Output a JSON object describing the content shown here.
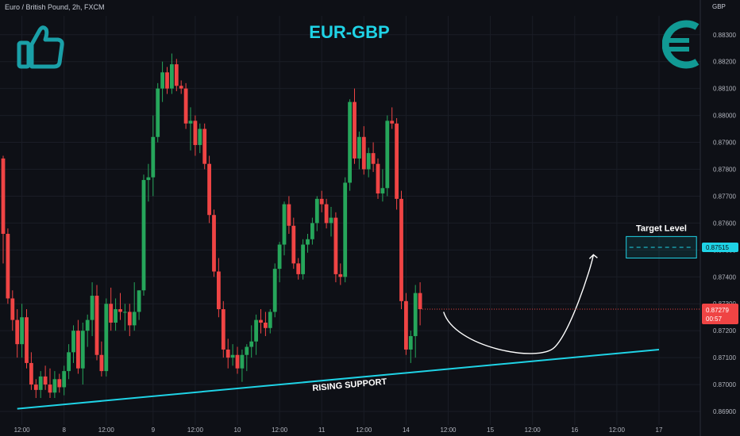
{
  "header": {
    "symbol_title": "Euro / British Pound, 2h, FXCM",
    "pair_title": "EUR-GBP",
    "currency": "GBP"
  },
  "icons": {
    "left": "thumbs-up-icon",
    "right": "euro-icon"
  },
  "colors": {
    "background": "#0e1016",
    "up": "#26a65b",
    "down": "#ef4444",
    "accent": "#1fd3e6",
    "grid": "#1a1d26",
    "axis_text": "#b2b5be",
    "annotation": "#ffffff"
  },
  "chart_data": {
    "type": "candlestick",
    "title": "EUR-GBP",
    "ylim": [
      0.8685,
      0.8837
    ],
    "yticks": [
      0.883,
      0.882,
      0.881,
      0.88,
      0.879,
      0.878,
      0.877,
      0.876,
      0.875,
      0.874,
      0.873,
      0.872,
      0.871,
      0.87,
      0.869
    ],
    "ytick_labels": [
      "0.88300",
      "0.88200",
      "0.88100",
      "0.88000",
      "0.87900",
      "0.87800",
      "0.87700",
      "0.87600",
      "0.87500",
      "0.87400",
      "0.87300",
      "0.87200",
      "0.87100",
      "0.87000",
      "0.86900"
    ],
    "xticks": [
      {
        "label": "12:00",
        "index": 4
      },
      {
        "label": "8",
        "index": 13
      },
      {
        "label": "12:00",
        "index": 22
      },
      {
        "label": "9",
        "index": 32
      },
      {
        "label": "12:00",
        "index": 41
      },
      {
        "label": "10",
        "index": 50
      },
      {
        "label": "12:00",
        "index": 59
      },
      {
        "label": "11",
        "index": 68
      },
      {
        "label": "12:00",
        "index": 77
      },
      {
        "label": "14",
        "index": 86
      },
      {
        "label": "12:00",
        "index": 95
      },
      {
        "label": "15",
        "index": 104
      },
      {
        "label": "12:00",
        "index": 113
      },
      {
        "label": "16",
        "index": 122
      },
      {
        "label": "12:00",
        "index": 131
      },
      {
        "label": "17",
        "index": 140
      }
    ],
    "candles": [
      [
        0.8784,
        0.8785,
        0.8745,
        0.8756
      ],
      [
        0.8756,
        0.8758,
        0.873,
        0.8732
      ],
      [
        0.8732,
        0.8735,
        0.872,
        0.8724
      ],
      [
        0.8724,
        0.8728,
        0.871,
        0.8715
      ],
      [
        0.8715,
        0.873,
        0.871,
        0.8725
      ],
      [
        0.8725,
        0.8728,
        0.8706,
        0.8708
      ],
      [
        0.8708,
        0.8712,
        0.8698,
        0.87
      ],
      [
        0.87,
        0.8702,
        0.8695,
        0.8698
      ],
      [
        0.8698,
        0.8705,
        0.8695,
        0.8703
      ],
      [
        0.8703,
        0.8707,
        0.8698,
        0.87
      ],
      [
        0.87,
        0.8706,
        0.8695,
        0.8697
      ],
      [
        0.8697,
        0.8705,
        0.8695,
        0.8702
      ],
      [
        0.8702,
        0.8704,
        0.8697,
        0.8699
      ],
      [
        0.8699,
        0.8707,
        0.8696,
        0.8705
      ],
      [
        0.8705,
        0.8715,
        0.8702,
        0.8712
      ],
      [
        0.8712,
        0.8722,
        0.8708,
        0.872
      ],
      [
        0.872,
        0.8724,
        0.8704,
        0.8706
      ],
      [
        0.8706,
        0.8723,
        0.87,
        0.872
      ],
      [
        0.872,
        0.8726,
        0.8714,
        0.8724
      ],
      [
        0.8724,
        0.8738,
        0.8718,
        0.8733
      ],
      [
        0.8733,
        0.8737,
        0.8709,
        0.8711
      ],
      [
        0.8711,
        0.8716,
        0.8703,
        0.8705
      ],
      [
        0.8705,
        0.8732,
        0.8703,
        0.873
      ],
      [
        0.873,
        0.8736,
        0.872,
        0.8723
      ],
      [
        0.8723,
        0.8732,
        0.872,
        0.8728
      ],
      [
        0.8728,
        0.8734,
        0.8724,
        0.8727
      ],
      [
        0.8727,
        0.873,
        0.872,
        0.8727
      ],
      [
        0.8727,
        0.873,
        0.8718,
        0.8722
      ],
      [
        0.8722,
        0.8738,
        0.872,
        0.8727
      ],
      [
        0.8727,
        0.8735,
        0.8724,
        0.8735
      ],
      [
        0.8735,
        0.8778,
        0.8733,
        0.8776
      ],
      [
        0.8776,
        0.8782,
        0.8768,
        0.8777
      ],
      [
        0.8777,
        0.88,
        0.877,
        0.8792
      ],
      [
        0.8792,
        0.8812,
        0.879,
        0.881
      ],
      [
        0.881,
        0.882,
        0.8805,
        0.8816
      ],
      [
        0.8816,
        0.8818,
        0.8808,
        0.881
      ],
      [
        0.881,
        0.8823,
        0.8808,
        0.8819
      ],
      [
        0.8819,
        0.8821,
        0.8809,
        0.8811
      ],
      [
        0.8811,
        0.8813,
        0.8808,
        0.881
      ],
      [
        0.881,
        0.8812,
        0.8795,
        0.8797
      ],
      [
        0.8797,
        0.8803,
        0.8787,
        0.8798
      ],
      [
        0.8798,
        0.88,
        0.8785,
        0.8789
      ],
      [
        0.8789,
        0.8797,
        0.8786,
        0.8795
      ],
      [
        0.8795,
        0.8797,
        0.878,
        0.8782
      ],
      [
        0.8782,
        0.8785,
        0.876,
        0.8763
      ],
      [
        0.8763,
        0.8765,
        0.874,
        0.8742
      ],
      [
        0.8742,
        0.8747,
        0.8725,
        0.8728
      ],
      [
        0.8728,
        0.8731,
        0.871,
        0.8713
      ],
      [
        0.8713,
        0.8717,
        0.8706,
        0.871
      ],
      [
        0.871,
        0.8715,
        0.8707,
        0.8711
      ],
      [
        0.8711,
        0.8714,
        0.8704,
        0.8706
      ],
      [
        0.8706,
        0.8713,
        0.8701,
        0.8711
      ],
      [
        0.8711,
        0.8715,
        0.8705,
        0.8714
      ],
      [
        0.8714,
        0.8722,
        0.871,
        0.8716
      ],
      [
        0.8716,
        0.8726,
        0.8711,
        0.8724
      ],
      [
        0.8724,
        0.8728,
        0.8719,
        0.8723
      ],
      [
        0.8723,
        0.8727,
        0.8718,
        0.8721
      ],
      [
        0.8721,
        0.8728,
        0.8719,
        0.8727
      ],
      [
        0.8727,
        0.8745,
        0.8725,
        0.8743
      ],
      [
        0.8743,
        0.8753,
        0.8738,
        0.8752
      ],
      [
        0.8752,
        0.8768,
        0.8748,
        0.8767
      ],
      [
        0.8767,
        0.877,
        0.8756,
        0.8759
      ],
      [
        0.8759,
        0.8762,
        0.8743,
        0.8745
      ],
      [
        0.8745,
        0.8747,
        0.8739,
        0.8741
      ],
      [
        0.8741,
        0.8754,
        0.8739,
        0.8752
      ],
      [
        0.8752,
        0.8756,
        0.8749,
        0.8754
      ],
      [
        0.8754,
        0.8762,
        0.8752,
        0.876
      ],
      [
        0.876,
        0.877,
        0.8757,
        0.8769
      ],
      [
        0.8769,
        0.8772,
        0.8764,
        0.8767
      ],
      [
        0.8767,
        0.8769,
        0.8758,
        0.876
      ],
      [
        0.876,
        0.8766,
        0.8755,
        0.8762
      ],
      [
        0.8762,
        0.8764,
        0.8738,
        0.8741
      ],
      [
        0.8741,
        0.8745,
        0.8737,
        0.874
      ],
      [
        0.874,
        0.8777,
        0.8738,
        0.8775
      ],
      [
        0.8775,
        0.8806,
        0.8772,
        0.8805
      ],
      [
        0.8805,
        0.881,
        0.8782,
        0.8784
      ],
      [
        0.8784,
        0.8794,
        0.878,
        0.8792
      ],
      [
        0.8792,
        0.8796,
        0.8778,
        0.878
      ],
      [
        0.878,
        0.8788,
        0.8777,
        0.8786
      ],
      [
        0.8786,
        0.879,
        0.8779,
        0.8782
      ],
      [
        0.8782,
        0.8784,
        0.8769,
        0.8771
      ],
      [
        0.8771,
        0.878,
        0.8768,
        0.8773
      ],
      [
        0.8773,
        0.88,
        0.877,
        0.8798
      ],
      [
        0.8798,
        0.8803,
        0.8795,
        0.8797
      ],
      [
        0.8797,
        0.8799,
        0.8765,
        0.8769
      ],
      [
        0.8769,
        0.8772,
        0.8728,
        0.8731
      ],
      [
        0.8731,
        0.8734,
        0.8711,
        0.8713
      ],
      [
        0.8713,
        0.872,
        0.8708,
        0.8718
      ],
      [
        0.8718,
        0.8737,
        0.871,
        0.8734
      ],
      [
        0.8734,
        0.8738,
        0.8722,
        0.8728
      ]
    ],
    "current_price_label": "0.87279",
    "countdown_label": "00:57",
    "target_price_label": "0.87515",
    "annotations": [
      {
        "text": "Target Level",
        "kind": "target-zone",
        "price_low": 0.8747,
        "price_high": 0.8755
      },
      {
        "text": "RISING SUPPORT",
        "kind": "trendline",
        "from": {
          "index": 3,
          "price": 0.8691
        },
        "to": {
          "index": 140,
          "price": 0.8713
        }
      }
    ],
    "projection": {
      "from": {
        "index": 93,
        "price": 0.8727
      },
      "trough": {
        "index": 116,
        "price": 0.8715
      },
      "to": {
        "index": 126,
        "price": 0.875
      }
    },
    "grid": true,
    "xlabel": "",
    "ylabel": ""
  }
}
